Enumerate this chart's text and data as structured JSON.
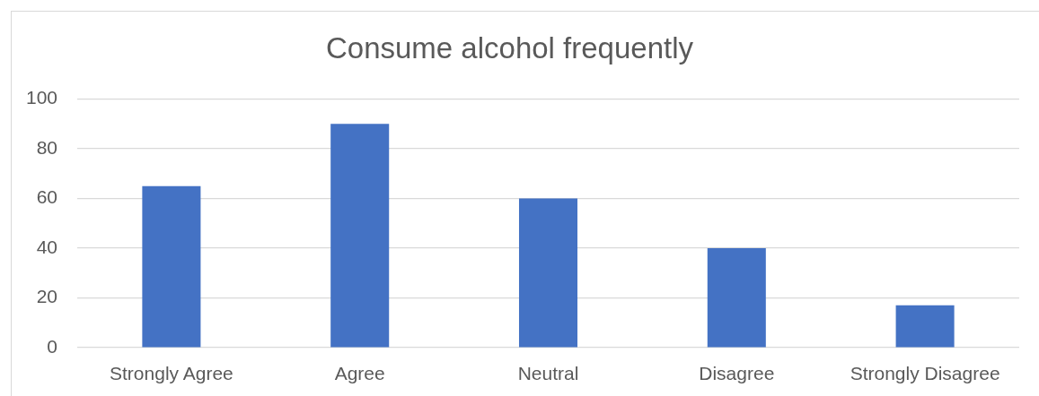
{
  "chart_data": {
    "type": "bar",
    "title": "Consume alcohol frequently",
    "categories": [
      "Strongly Agree",
      "Agree",
      "Neutral",
      "Disagree",
      "Strongly Disagree"
    ],
    "values": [
      65,
      90,
      60,
      40,
      17
    ],
    "color": "#4472c4",
    "ylim": [
      0,
      100
    ],
    "yticks": [
      0,
      20,
      40,
      60,
      80,
      100
    ],
    "grid": "y"
  }
}
